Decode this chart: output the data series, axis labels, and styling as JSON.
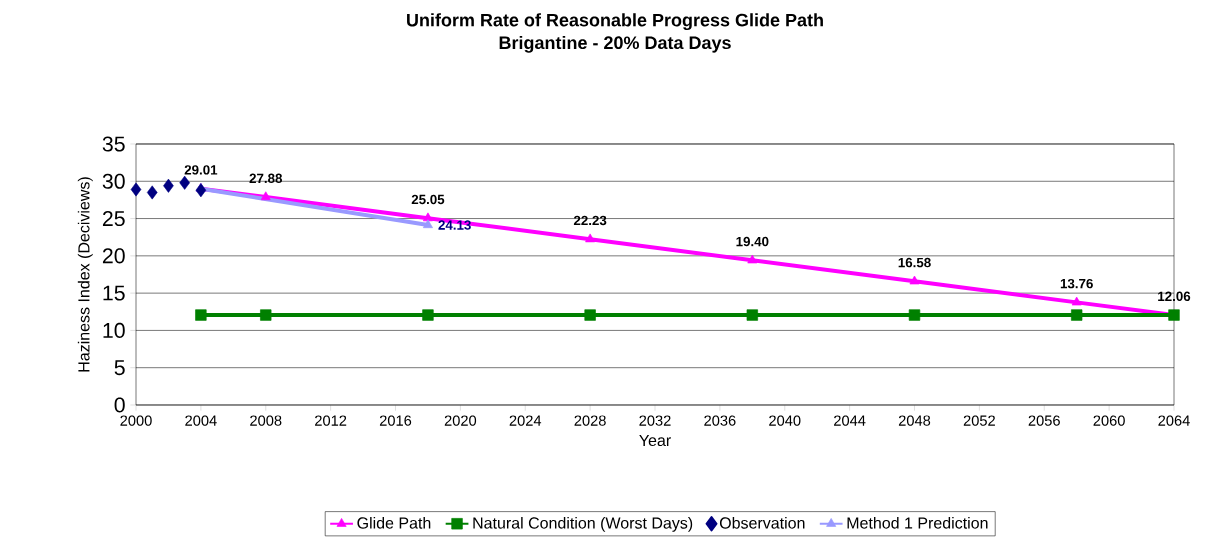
{
  "chart_data": {
    "type": "line",
    "title": "Uniform Rate of Reasonable Progress Glide Path",
    "subtitle": "Brigantine - 20% Data Days",
    "xlabel": "Year",
    "ylabel": "Haziness Index (Deciviews)",
    "xlim": [
      2000,
      2064
    ],
    "xticks": [
      2000,
      2004,
      2008,
      2012,
      2016,
      2020,
      2024,
      2028,
      2032,
      2036,
      2040,
      2044,
      2048,
      2052,
      2056,
      2060,
      2064
    ],
    "ylim": [
      0,
      35
    ],
    "yticks": [
      0,
      5,
      10,
      15,
      20,
      25,
      30,
      35
    ],
    "grid": "y",
    "legend": "bottom",
    "series": [
      {
        "name": "Glide Path",
        "color": "#ff00ff",
        "marker": "triangle",
        "line_style": "solid",
        "x": [
          2004,
          2008,
          2018,
          2028,
          2038,
          2048,
          2058,
          2064
        ],
        "values": [
          29.01,
          27.88,
          25.05,
          22.23,
          19.4,
          16.58,
          13.76,
          12.06
        ],
        "value_labels": [
          "29.01",
          "27.88",
          "25.05",
          "22.23",
          "19.40",
          "16.58",
          "13.76",
          "12.06"
        ]
      },
      {
        "name": "Natural Condition (Worst Days)",
        "color": "#008000",
        "marker": "square",
        "line_style": "solid",
        "x": [
          2004,
          2008,
          2018,
          2028,
          2038,
          2048,
          2058,
          2064
        ],
        "values": [
          12.06,
          12.06,
          12.06,
          12.06,
          12.06,
          12.06,
          12.06,
          12.06
        ]
      },
      {
        "name": "Observation",
        "color": "#000080",
        "type": "scatter",
        "marker": "diamond",
        "x": [
          2000,
          2001,
          2002,
          2003,
          2004
        ],
        "values": [
          28.9,
          28.5,
          29.4,
          29.8,
          28.8
        ]
      },
      {
        "name": "Method 1 Prediction",
        "color": "#9999ff",
        "marker": "triangle",
        "line_style": "solid",
        "x": [
          2004,
          2018
        ],
        "values": [
          29.01,
          24.13
        ],
        "value_labels": [
          null,
          "24.13"
        ]
      }
    ]
  }
}
